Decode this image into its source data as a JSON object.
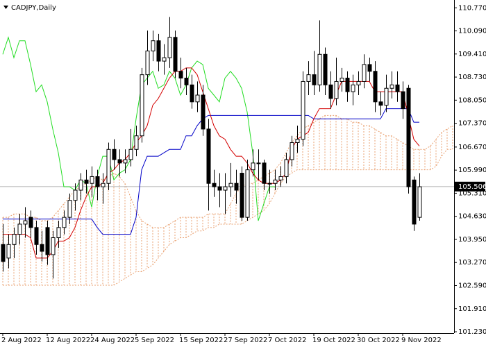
{
  "chart_data": {
    "type": "candlestick",
    "title": "CADJPY,Daily",
    "categories": [
      "2 Aug 2022",
      null,
      null,
      null,
      null,
      null,
      null,
      null,
      "12 Aug 2022",
      null,
      null,
      null,
      null,
      null,
      null,
      null,
      "24 Aug 2022",
      null,
      null,
      null,
      null,
      null,
      null,
      null,
      "5 Sep 2022",
      null,
      null,
      null,
      null,
      null,
      null,
      null,
      "15 Sep 2022",
      null,
      null,
      null,
      null,
      null,
      null,
      null,
      "27 Sep 2022",
      null,
      null,
      null,
      null,
      null,
      null,
      null,
      "7 Oct 2022",
      null,
      null,
      null,
      null,
      null,
      null,
      null,
      "19 Oct 2022",
      null,
      null,
      null,
      null,
      null,
      null,
      null,
      "30 Oct 2022",
      null,
      null,
      null,
      null,
      null,
      null,
      null,
      "9 Nov 2022",
      null,
      null,
      null,
      null,
      null,
      null,
      null,
      null,
      null
    ],
    "open": [
      103.8,
      103.4,
      103.8,
      104.1,
      104.4,
      104.6,
      104.3,
      103.8,
      104.3,
      103.5,
      104.0,
      104.3,
      104.6,
      105.1,
      105.4,
      105.7,
      105.6,
      105.8,
      105.5,
      105.6,
      106.6,
      106.3,
      106.2,
      106.3,
      106.6,
      107.0,
      108.8,
      109.5,
      109.8,
      109.2,
      109.3,
      109.9,
      108.9,
      108.7,
      108.5,
      108.0,
      108.2,
      107.2,
      105.6,
      105.5,
      105.4,
      105.5,
      105.6,
      105.9,
      104.6,
      106.0,
      106.2,
      106.2,
      105.6,
      105.6,
      105.7,
      105.8,
      106.3,
      106.8,
      106.9,
      108.6,
      108.8,
      108.5,
      109.4,
      108.5,
      108.1,
      108.6,
      108.7,
      108.3,
      108.5,
      108.6,
      109.1,
      108.9,
      108.0,
      107.9,
      108.4,
      108.5,
      108.3,
      108.4,
      105.7,
      104.6,
      null,
      null,
      null,
      null,
      null,
      null
    ],
    "high": [
      104.4,
      104.1,
      104.3,
      104.7,
      104.9,
      104.8,
      104.5,
      104.2,
      104.5,
      104.2,
      104.5,
      104.8,
      105.3,
      105.6,
      105.9,
      106.0,
      106.1,
      106.0,
      105.9,
      106.8,
      106.9,
      106.6,
      106.6,
      107.2,
      107.3,
      109.0,
      110.1,
      110.1,
      110.0,
      109.7,
      110.5,
      110.1,
      109.3,
      109.0,
      108.8,
      108.6,
      108.5,
      107.5,
      106.0,
      105.9,
      105.9,
      106.2,
      106.0,
      106.1,
      106.3,
      106.6,
      106.6,
      106.3,
      106.0,
      106.0,
      106.1,
      106.5,
      107.0,
      107.3,
      108.9,
      109.2,
      109.5,
      110.4,
      109.6,
      108.9,
      109.3,
      109.0,
      108.9,
      108.8,
      108.9,
      109.4,
      109.3,
      109.2,
      108.3,
      108.8,
      108.9,
      108.9,
      108.6,
      108.5,
      105.8,
      105.9,
      null,
      null,
      null,
      null,
      null,
      null
    ],
    "low": [
      103.0,
      103.1,
      103.4,
      103.8,
      104.0,
      104.0,
      103.5,
      103.3,
      103.2,
      102.8,
      103.7,
      104.1,
      104.4,
      104.8,
      105.1,
      105.3,
      105.2,
      105.1,
      105.0,
      105.4,
      106.0,
      105.8,
      105.9,
      106.1,
      106.4,
      106.8,
      108.5,
      109.2,
      108.9,
      108.8,
      109.0,
      108.7,
      108.4,
      108.2,
      107.8,
      107.7,
      107.0,
      104.8,
      105.2,
      104.9,
      104.7,
      105.2,
      105.0,
      104.5,
      104.5,
      105.8,
      105.7,
      105.4,
      105.3,
      105.4,
      105.5,
      105.6,
      106.1,
      106.5,
      106.7,
      108.2,
      108.2,
      108.3,
      108.2,
      107.8,
      107.9,
      108.3,
      108.0,
      107.9,
      108.2,
      108.4,
      108.6,
      107.7,
      107.6,
      107.7,
      108.1,
      108.0,
      107.5,
      105.3,
      104.2,
      104.5,
      null,
      null,
      null,
      null,
      null,
      null
    ],
    "close": [
      103.3,
      103.8,
      104.1,
      104.4,
      104.5,
      104.3,
      103.8,
      103.6,
      103.5,
      104.0,
      104.3,
      104.6,
      105.1,
      105.4,
      105.7,
      105.6,
      105.8,
      105.5,
      105.6,
      106.6,
      106.3,
      106.2,
      106.3,
      106.6,
      107.0,
      108.8,
      109.5,
      109.8,
      109.2,
      109.3,
      109.9,
      108.9,
      108.7,
      108.5,
      108.0,
      108.2,
      107.2,
      105.6,
      105.5,
      105.4,
      105.5,
      105.6,
      105.4,
      104.6,
      106.0,
      106.2,
      106.2,
      105.6,
      105.6,
      105.7,
      105.8,
      106.3,
      106.8,
      106.9,
      108.6,
      108.8,
      108.5,
      109.4,
      108.5,
      108.1,
      108.6,
      108.7,
      108.3,
      108.5,
      108.6,
      109.1,
      108.9,
      108.0,
      107.9,
      108.4,
      108.5,
      108.3,
      107.8,
      105.5,
      104.4,
      105.5,
      null,
      null,
      null,
      null,
      null,
      null
    ],
    "bull_color": "#ffffff",
    "bear_color": "#000000",
    "indicators": {
      "tenkan": {
        "color": "#d40000",
        "values": [
          104.1,
          104.1,
          104.1,
          104.1,
          104.1,
          104.0,
          103.4,
          103.4,
          103.4,
          103.6,
          103.9,
          103.9,
          104.0,
          104.3,
          104.8,
          105.2,
          105.5,
          105.5,
          105.6,
          105.9,
          106.0,
          106.2,
          106.3,
          106.5,
          106.8,
          107.0,
          107.3,
          107.9,
          108.1,
          108.4,
          108.7,
          108.9,
          108.9,
          109.0,
          109.0,
          108.8,
          108.3,
          107.8,
          107.3,
          107.0,
          106.9,
          106.6,
          106.4,
          106.4,
          106.2,
          105.9,
          105.7,
          105.6,
          105.6,
          105.6,
          105.7,
          105.9,
          106.6,
          106.9,
          107.0,
          107.1,
          107.5,
          107.8,
          107.8,
          107.8,
          108.2,
          108.6,
          108.6,
          108.6,
          108.6,
          108.6,
          108.6,
          108.3,
          108.3,
          108.3,
          108.3,
          108.3,
          108.3,
          107.6,
          106.9,
          106.7,
          null,
          null,
          null,
          null,
          null,
          null
        ]
      },
      "kijun": {
        "color": "#0000c8",
        "values": [
          104.55,
          104.55,
          104.55,
          104.55,
          104.55,
          104.55,
          104.55,
          104.55,
          104.55,
          104.55,
          104.55,
          104.55,
          104.55,
          104.55,
          104.55,
          104.55,
          104.55,
          104.3,
          104.1,
          104.1,
          104.1,
          104.1,
          104.1,
          104.1,
          104.6,
          106.0,
          106.4,
          106.4,
          106.4,
          106.5,
          106.6,
          106.6,
          106.6,
          107.0,
          107.0,
          107.3,
          107.5,
          107.6,
          107.6,
          107.6,
          107.6,
          107.6,
          107.6,
          107.6,
          107.6,
          107.6,
          107.6,
          107.6,
          107.6,
          107.6,
          107.6,
          107.6,
          107.6,
          107.6,
          107.6,
          107.6,
          107.5,
          107.5,
          107.5,
          107.5,
          107.5,
          107.5,
          107.5,
          107.5,
          107.5,
          107.5,
          107.5,
          107.5,
          107.5,
          107.8,
          107.8,
          107.8,
          107.8,
          107.8,
          107.4,
          107.4,
          null,
          null,
          null,
          null,
          null,
          null
        ]
      },
      "chikou": {
        "color": "#22dd22",
        "values": [
          109.4,
          109.9,
          109.3,
          109.8,
          109.8,
          109.1,
          108.3,
          108.5,
          108.0,
          107.2,
          106.5,
          105.5,
          105.5,
          105.4,
          105.7,
          105.6,
          104.9,
          105.8,
          106.4,
          106.4,
          105.7,
          105.9,
          106.0,
          106.3,
          107.5,
          108.5,
          108.7,
          108.9,
          108.4,
          108.5,
          108.9,
          108.7,
          108.2,
          108.5,
          109.0,
          109.2,
          109.1,
          108.4,
          108.2,
          108.0,
          108.7,
          108.9,
          108.7,
          108.4,
          107.7,
          106.5,
          104.5,
          105.0,
          105.5,
          105.5,
          null,
          null,
          null,
          null,
          null,
          null,
          null,
          null,
          null,
          null,
          null,
          null,
          null,
          null,
          null,
          null,
          null,
          null,
          null,
          null,
          null,
          null,
          null,
          null,
          null,
          null,
          null,
          null,
          null,
          null,
          null,
          null
        ]
      },
      "span_a": {
        "values": [
          104.6,
          104.6,
          104.7,
          104.7,
          104.7,
          104.6,
          104.6,
          104.5,
          104.5,
          104.6,
          104.8,
          105.0,
          105.2,
          105.4,
          105.5,
          105.6,
          105.7,
          105.8,
          105.7,
          105.8,
          105.9,
          105.8,
          105.6,
          105.2,
          104.8,
          104.5,
          104.4,
          104.3,
          104.3,
          104.3,
          104.4,
          104.5,
          104.6,
          104.6,
          104.6,
          104.6,
          104.6,
          104.7,
          104.7,
          104.7,
          104.7,
          105.0,
          105.3,
          105.5,
          105.6,
          105.6,
          105.7,
          105.8,
          105.9,
          106.0,
          106.2,
          106.5,
          106.8,
          107.0,
          107.2,
          107.3,
          107.4,
          107.5,
          107.6,
          107.6,
          107.6,
          107.5,
          107.5,
          107.4,
          107.4,
          107.3,
          107.3,
          107.2,
          107.1,
          107.0,
          107.0,
          106.9,
          106.8,
          106.7,
          106.6,
          106.6,
          106.6,
          106.7,
          106.9,
          107.1,
          107.2,
          107.3
        ]
      },
      "span_b": {
        "values": [
          102.6,
          102.6,
          102.6,
          102.6,
          102.6,
          102.6,
          102.6,
          102.6,
          102.6,
          102.6,
          102.6,
          102.6,
          102.6,
          102.6,
          102.6,
          102.6,
          102.6,
          102.6,
          102.6,
          102.6,
          102.6,
          102.7,
          102.8,
          102.9,
          103.0,
          103.0,
          103.1,
          103.2,
          103.4,
          103.6,
          103.8,
          103.9,
          104.0,
          104.0,
          104.1,
          104.2,
          104.2,
          104.3,
          104.3,
          104.4,
          104.4,
          104.4,
          104.4,
          104.4,
          104.5,
          104.6,
          104.7,
          104.8,
          105.0,
          105.3,
          105.6,
          105.8,
          105.9,
          106.0,
          106.0,
          106.0,
          106.0,
          106.0,
          106.0,
          106.0,
          106.0,
          106.0,
          106.0,
          106.0,
          106.0,
          106.0,
          106.0,
          106.0,
          106.0,
          106.0,
          106.0,
          106.0,
          106.0,
          106.0,
          106.0,
          106.0,
          106.0,
          106.0,
          106.1,
          106.4,
          106.6,
          106.6
        ]
      },
      "cloud_color": "#e9a070"
    },
    "current_price": 105.506,
    "ylim": [
      101.19,
      111.0
    ],
    "yticks": [
      {
        "value": 110.77,
        "label": "110.770"
      },
      {
        "value": 110.09,
        "label": "110.090"
      },
      {
        "value": 109.41,
        "label": "109.410"
      },
      {
        "value": 108.73,
        "label": "108.730"
      },
      {
        "value": 108.05,
        "label": "108.050"
      },
      {
        "value": 107.37,
        "label": "107.370"
      },
      {
        "value": 106.67,
        "label": "106.670"
      },
      {
        "value": 105.99,
        "label": "105.990"
      },
      {
        "value": 105.31,
        "label": "105.310"
      },
      {
        "value": 104.63,
        "label": "104.630"
      },
      {
        "value": 103.95,
        "label": "103.950"
      },
      {
        "value": 103.27,
        "label": "103.270"
      },
      {
        "value": 102.59,
        "label": "102.590"
      },
      {
        "value": 101.91,
        "label": "101.910"
      },
      {
        "value": 101.23,
        "label": "101.230"
      }
    ]
  }
}
